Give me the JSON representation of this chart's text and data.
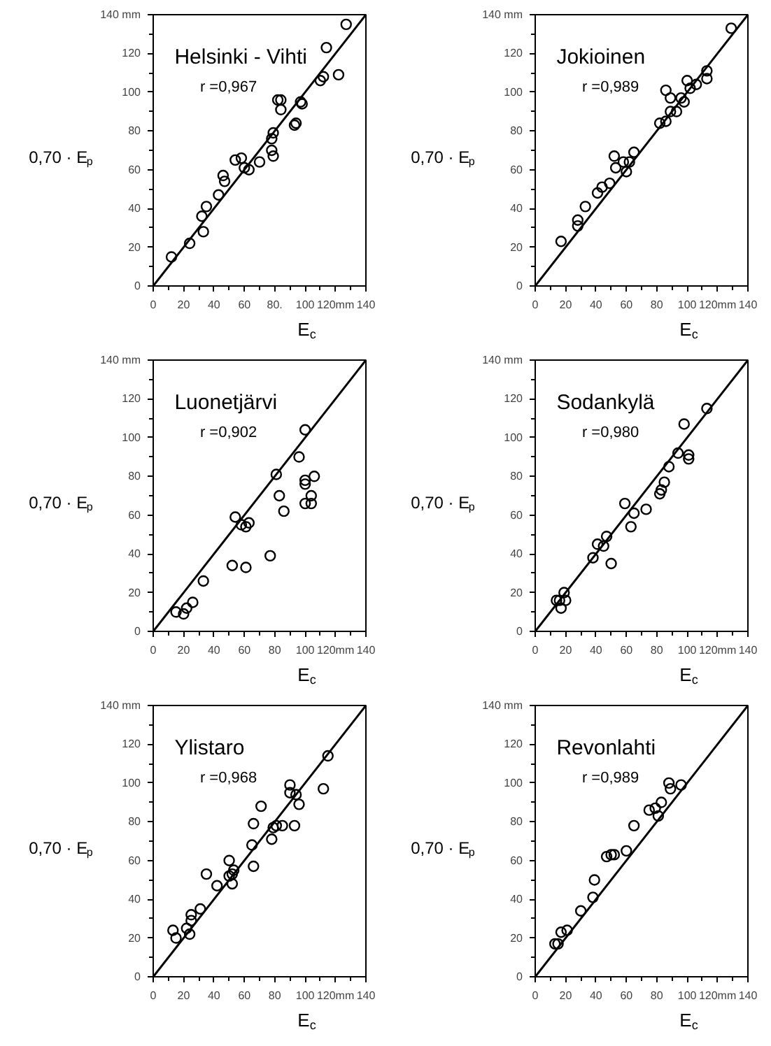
{
  "chart_data": [
    {
      "type": "scatter",
      "title": "Helsinki - Vihti",
      "annotations": [
        "r =0,967"
      ],
      "xlabel": "E$_{c}$",
      "ylabel": "0,70 · E$_{p}$",
      "xlim": [
        0,
        140
      ],
      "ylim": [
        0,
        140
      ],
      "xticks": [
        0,
        {
          "value": 10,
          "label": null
        },
        20,
        {
          "value": 30,
          "label": null
        },
        40,
        {
          "value": 50,
          "label": null
        },
        60,
        {
          "value": 70,
          "label": null
        },
        {
          "value": 80,
          "label": "80."
        },
        {
          "value": 90,
          "label": null
        },
        100,
        {
          "value": 110,
          "label": null
        },
        {
          "value": 120,
          "label": "120mm"
        },
        {
          "value": 130,
          "label": null
        },
        140
      ],
      "yticks": [
        0,
        {
          "value": 10,
          "label": null
        },
        20,
        {
          "value": 30,
          "label": null
        },
        40,
        {
          "value": 50,
          "label": null
        },
        60,
        {
          "value": 70,
          "label": null
        },
        80,
        {
          "value": 90,
          "label": null
        },
        100,
        {
          "value": 110,
          "label": null
        },
        120,
        {
          "value": 130,
          "label": null
        },
        {
          "value": 140,
          "label": "140 mm"
        }
      ],
      "grid": false,
      "series": [
        {
          "marker": "circle",
          "color": "#000000",
          "x": [
            12,
            24,
            32,
            33,
            35,
            43,
            46,
            47,
            54,
            58,
            60,
            63,
            70,
            78,
            79,
            78,
            79,
            82,
            84,
            84,
            93,
            94,
            97,
            98,
            110,
            112,
            114,
            122,
            127
          ],
          "values": [
            15,
            22,
            36,
            28,
            41,
            47,
            57,
            54,
            65,
            66,
            61,
            60,
            64,
            70,
            67,
            76,
            79,
            96,
            96,
            91,
            83,
            84,
            95,
            94,
            106,
            108,
            123,
            109,
            135
          ]
        },
        {
          "type": "line",
          "color": "#000000",
          "x": [
            0,
            140
          ],
          "values": [
            0,
            140
          ]
        }
      ]
    },
    {
      "type": "scatter",
      "title": "Jokioinen",
      "annotations": [
        "r =0,989"
      ],
      "xlabel": "E$_{c}$",
      "ylabel": "0,70 · E$_{p}$",
      "xlim": [
        0,
        140
      ],
      "ylim": [
        0,
        140
      ],
      "xticks": [
        0,
        {
          "value": 10,
          "label": null
        },
        20,
        {
          "value": 30,
          "label": null
        },
        40,
        {
          "value": 50,
          "label": null
        },
        60,
        {
          "value": 70,
          "label": null
        },
        80,
        {
          "value": 90,
          "label": null
        },
        100,
        {
          "value": 110,
          "label": null
        },
        {
          "value": 120,
          "label": "120mm"
        },
        {
          "value": 130,
          "label": null
        },
        140
      ],
      "yticks": [
        0,
        {
          "value": 10,
          "label": null
        },
        20,
        {
          "value": 30,
          "label": null
        },
        40,
        {
          "value": 50,
          "label": null
        },
        60,
        {
          "value": 70,
          "label": null
        },
        80,
        {
          "value": 90,
          "label": null
        },
        100,
        {
          "value": 110,
          "label": null
        },
        120,
        {
          "value": 130,
          "label": null
        },
        {
          "value": 140,
          "label": "140 mm"
        }
      ],
      "grid": false,
      "series": [
        {
          "marker": "circle",
          "color": "#000000",
          "x": [
            17,
            28,
            28,
            33,
            41,
            44,
            49,
            52,
            53,
            58,
            60,
            62,
            65,
            82,
            86,
            86,
            89,
            89,
            93,
            96,
            98,
            100,
            102,
            106,
            113,
            113,
            129
          ],
          "values": [
            23,
            34,
            31,
            41,
            48,
            51,
            53,
            67,
            61,
            64,
            59,
            64,
            69,
            84,
            85,
            101,
            90,
            97,
            90,
            97,
            95,
            106,
            102,
            104,
            107,
            111,
            133
          ]
        },
        {
          "type": "line",
          "color": "#000000",
          "x": [
            0,
            140
          ],
          "values": [
            0,
            140
          ]
        }
      ]
    },
    {
      "type": "scatter",
      "title": "Luonetjärvi",
      "annotations": [
        "r =0,902"
      ],
      "xlabel": "E$_{c}$",
      "ylabel": "0,70 · E$_{p}$",
      "xlim": [
        0,
        140
      ],
      "ylim": [
        0,
        140
      ],
      "xticks": [
        0,
        {
          "value": 10,
          "label": null
        },
        20,
        {
          "value": 30,
          "label": null
        },
        40,
        {
          "value": 50,
          "label": null
        },
        60,
        {
          "value": 70,
          "label": null
        },
        80,
        {
          "value": 90,
          "label": null
        },
        100,
        {
          "value": 110,
          "label": null
        },
        {
          "value": 120,
          "label": "120mm"
        },
        {
          "value": 130,
          "label": null
        },
        140
      ],
      "yticks": [
        0,
        {
          "value": 10,
          "label": null
        },
        20,
        {
          "value": 30,
          "label": null
        },
        40,
        {
          "value": 50,
          "label": null
        },
        60,
        {
          "value": 70,
          "label": null
        },
        80,
        {
          "value": 90,
          "label": null
        },
        100,
        {
          "value": 110,
          "label": null
        },
        120,
        {
          "value": 130,
          "label": null
        },
        {
          "value": 140,
          "label": "140 mm"
        }
      ],
      "grid": false,
      "series": [
        {
          "marker": "circle",
          "color": "#000000",
          "x": [
            15,
            20,
            22,
            26,
            33,
            52,
            54,
            58,
            61,
            61,
            63,
            77,
            81,
            83,
            86,
            96,
            100,
            100,
            100,
            100,
            104,
            104,
            106
          ],
          "values": [
            10,
            9,
            12,
            15,
            26,
            34,
            59,
            55,
            54,
            33,
            56,
            39,
            81,
            70,
            62,
            90,
            104,
            78,
            76,
            66,
            70,
            66,
            80
          ]
        },
        {
          "type": "line",
          "color": "#000000",
          "x": [
            0,
            140
          ],
          "values": [
            0,
            140
          ]
        }
      ]
    },
    {
      "type": "scatter",
      "title": "Sodankylä",
      "annotations": [
        "r =0,980"
      ],
      "xlabel": "E$_{c}$",
      "ylabel": "0,70 · E$_{p}$",
      "xlim": [
        0,
        140
      ],
      "ylim": [
        0,
        140
      ],
      "xticks": [
        0,
        {
          "value": 10,
          "label": null
        },
        20,
        {
          "value": 30,
          "label": null
        },
        40,
        {
          "value": 50,
          "label": null
        },
        60,
        {
          "value": 70,
          "label": null
        },
        80,
        {
          "value": 90,
          "label": null
        },
        100,
        {
          "value": 110,
          "label": null
        },
        {
          "value": 120,
          "label": "120mm"
        },
        {
          "value": 130,
          "label": null
        },
        140
      ],
      "yticks": [
        0,
        {
          "value": 10,
          "label": null
        },
        20,
        {
          "value": 30,
          "label": null
        },
        40,
        {
          "value": 50,
          "label": null
        },
        60,
        {
          "value": 70,
          "label": null
        },
        80,
        {
          "value": 90,
          "label": null
        },
        100,
        {
          "value": 110,
          "label": null
        },
        120,
        {
          "value": 130,
          "label": null
        },
        {
          "value": 140,
          "label": "140 mm"
        }
      ],
      "grid": false,
      "series": [
        {
          "marker": "circle",
          "color": "#000000",
          "x": [
            14,
            16,
            17,
            19,
            20,
            38,
            41,
            45,
            47,
            50,
            59,
            63,
            65,
            73,
            82,
            83,
            85,
            88,
            94,
            98,
            101,
            101,
            113
          ],
          "values": [
            16,
            16,
            12,
            20,
            16,
            38,
            45,
            44,
            49,
            35,
            66,
            54,
            61,
            63,
            71,
            73,
            77,
            85,
            92,
            107,
            91,
            89,
            115
          ]
        },
        {
          "type": "line",
          "color": "#000000",
          "x": [
            0,
            140
          ],
          "values": [
            0,
            140
          ]
        }
      ]
    },
    {
      "type": "scatter",
      "title": "Ylistaro",
      "annotations": [
        "r =0,968"
      ],
      "xlabel": "E$_{c}$",
      "ylabel": "0,70 · E$_{p}$",
      "xlim": [
        0,
        140
      ],
      "ylim": [
        0,
        140
      ],
      "xticks": [
        0,
        {
          "value": 10,
          "label": null
        },
        20,
        {
          "value": 30,
          "label": null
        },
        40,
        {
          "value": 50,
          "label": null
        },
        60,
        {
          "value": 70,
          "label": null
        },
        80,
        {
          "value": 90,
          "label": null
        },
        100,
        {
          "value": 110,
          "label": null
        },
        {
          "value": 120,
          "label": "120mm"
        },
        {
          "value": 130,
          "label": null
        },
        140
      ],
      "yticks": [
        0,
        {
          "value": 10,
          "label": null
        },
        20,
        {
          "value": 30,
          "label": null
        },
        40,
        {
          "value": 50,
          "label": null
        },
        60,
        {
          "value": 70,
          "label": null
        },
        80,
        {
          "value": 90,
          "label": null
        },
        100,
        {
          "value": 110,
          "label": null
        },
        120,
        {
          "value": 130,
          "label": null
        },
        {
          "value": 140,
          "label": "140 mm"
        }
      ],
      "grid": false,
      "series": [
        {
          "marker": "circle",
          "color": "#000000",
          "x": [
            13,
            15,
            22,
            24,
            25,
            25,
            31,
            35,
            42,
            50,
            50,
            52,
            52,
            53,
            65,
            66,
            66,
            71,
            78,
            79,
            81,
            85,
            90,
            90,
            93,
            94,
            96,
            112,
            115
          ],
          "values": [
            24,
            20,
            25,
            22,
            32,
            29,
            35,
            53,
            47,
            60,
            52,
            53,
            48,
            55,
            68,
            57,
            79,
            88,
            71,
            77,
            78,
            78,
            99,
            95,
            78,
            94,
            89,
            97,
            114
          ]
        },
        {
          "type": "line",
          "color": "#000000",
          "x": [
            0,
            140
          ],
          "values": [
            0,
            140
          ]
        }
      ]
    },
    {
      "type": "scatter",
      "title": "Revonlahti",
      "annotations": [
        "r =0,989"
      ],
      "xlabel": "E$_{c}$",
      "ylabel": "0,70 · E$_{p}$",
      "xlim": [
        0,
        140
      ],
      "ylim": [
        0,
        140
      ],
      "xticks": [
        0,
        {
          "value": 10,
          "label": null
        },
        20,
        {
          "value": 30,
          "label": null
        },
        40,
        {
          "value": 50,
          "label": null
        },
        60,
        {
          "value": 70,
          "label": null
        },
        80,
        {
          "value": 90,
          "label": null
        },
        100,
        {
          "value": 110,
          "label": null
        },
        {
          "value": 120,
          "label": "120mm"
        },
        {
          "value": 130,
          "label": null
        },
        140
      ],
      "yticks": [
        0,
        {
          "value": 10,
          "label": null
        },
        20,
        {
          "value": 30,
          "label": null
        },
        40,
        {
          "value": 50,
          "label": null
        },
        60,
        {
          "value": 70,
          "label": null
        },
        80,
        {
          "value": 90,
          "label": null
        },
        100,
        {
          "value": 110,
          "label": null
        },
        120,
        {
          "value": 130,
          "label": null
        },
        {
          "value": 140,
          "label": "140 mm"
        }
      ],
      "grid": false,
      "series": [
        {
          "marker": "circle",
          "color": "#000000",
          "x": [
            13,
            15,
            17,
            21,
            30,
            38,
            39,
            47,
            50,
            52,
            60,
            65,
            75,
            79,
            83,
            81,
            88,
            89,
            96
          ],
          "values": [
            17,
            17,
            23,
            24,
            34,
            41,
            50,
            62,
            63,
            63,
            65,
            78,
            86,
            87,
            90,
            83,
            100,
            97,
            99
          ]
        },
        {
          "type": "line",
          "color": "#000000",
          "x": [
            0,
            140
          ],
          "values": [
            0,
            140
          ]
        }
      ]
    }
  ]
}
